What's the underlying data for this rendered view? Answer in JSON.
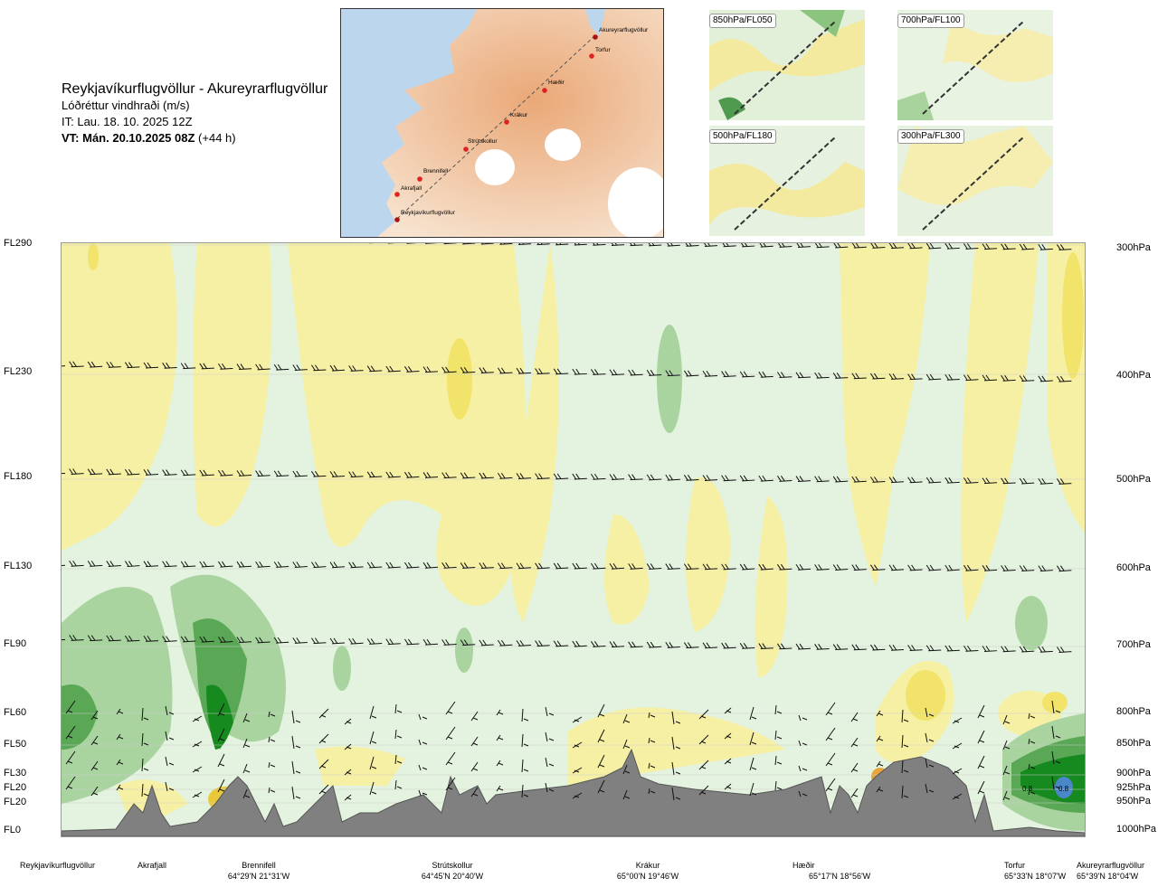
{
  "header": {
    "route": "Reykjavíkurflugvöllur - Akureyrarflugvöllur",
    "parameter": "Lóðréttur vindhraði (m/s)",
    "issue_time": "IT: Lau. 18. 10. 2025 12Z",
    "valid_time": "VT: Mán. 20.10.2025 08Z",
    "lead": "(+44 h)"
  },
  "route_map": {
    "points": [
      "Akureyrarflugvöllur",
      "Torfur",
      "Hæðir",
      "Krákur",
      "Strútskollur",
      "Brennifell",
      "Akrafjall",
      "Reykjavíkurflugvöllur"
    ]
  },
  "level_panels": [
    {
      "label": "850hPa/FL050"
    },
    {
      "label": "700hPa/FL100"
    },
    {
      "label": "500hPa/FL180"
    },
    {
      "label": "300hPa/FL300"
    }
  ],
  "flight_levels": [
    "FL290",
    "FL230",
    "FL180",
    "FL130",
    "FL90",
    "FL60",
    "FL50",
    "FL30",
    "FL20",
    "FL20",
    "FL0"
  ],
  "pressure_levels": [
    "300hPa",
    "400hPa",
    "500hPa",
    "600hPa",
    "700hPa",
    "800hPa",
    "850hPa",
    "900hPa",
    "925hPa",
    "950hPa",
    "1000hPa"
  ],
  "stations": [
    {
      "name": "Reykjavíkurflugvöllur",
      "coord": ""
    },
    {
      "name": "Akrafjall",
      "coord": ""
    },
    {
      "name": "Brennifell",
      "coord": "64°29'N 21°31'W"
    },
    {
      "name": "Strútskollur",
      "coord": "64°45'N 20°40'W"
    },
    {
      "name": "Krákur",
      "coord": "65°00'N 19°46'W"
    },
    {
      "name": "Hæðir",
      "coord": "65°17'N 18°56'W"
    },
    {
      "name": "Torfur",
      "coord": "65°33'N 18°07'W"
    },
    {
      "name": "Akureyrarflugvöllur",
      "coord": "65°39'N 18°04'W"
    }
  ],
  "annotations": [
    "0.8",
    "0.8"
  ],
  "colors": {
    "sink_light": "#f6f0a4",
    "sink_mid": "#f2e46a",
    "sink_strong": "#e9c93a",
    "sink_orange": "#e8a53a",
    "rise_light": "#d4ecd0",
    "rise_mid": "#a9d4a0",
    "rise_strong": "#5aa856",
    "rise_dark": "#168a1e",
    "neutral": "#f4fbef",
    "terrain": "#808080",
    "water": "#c8def0",
    "land": "#f5d9bf"
  }
}
